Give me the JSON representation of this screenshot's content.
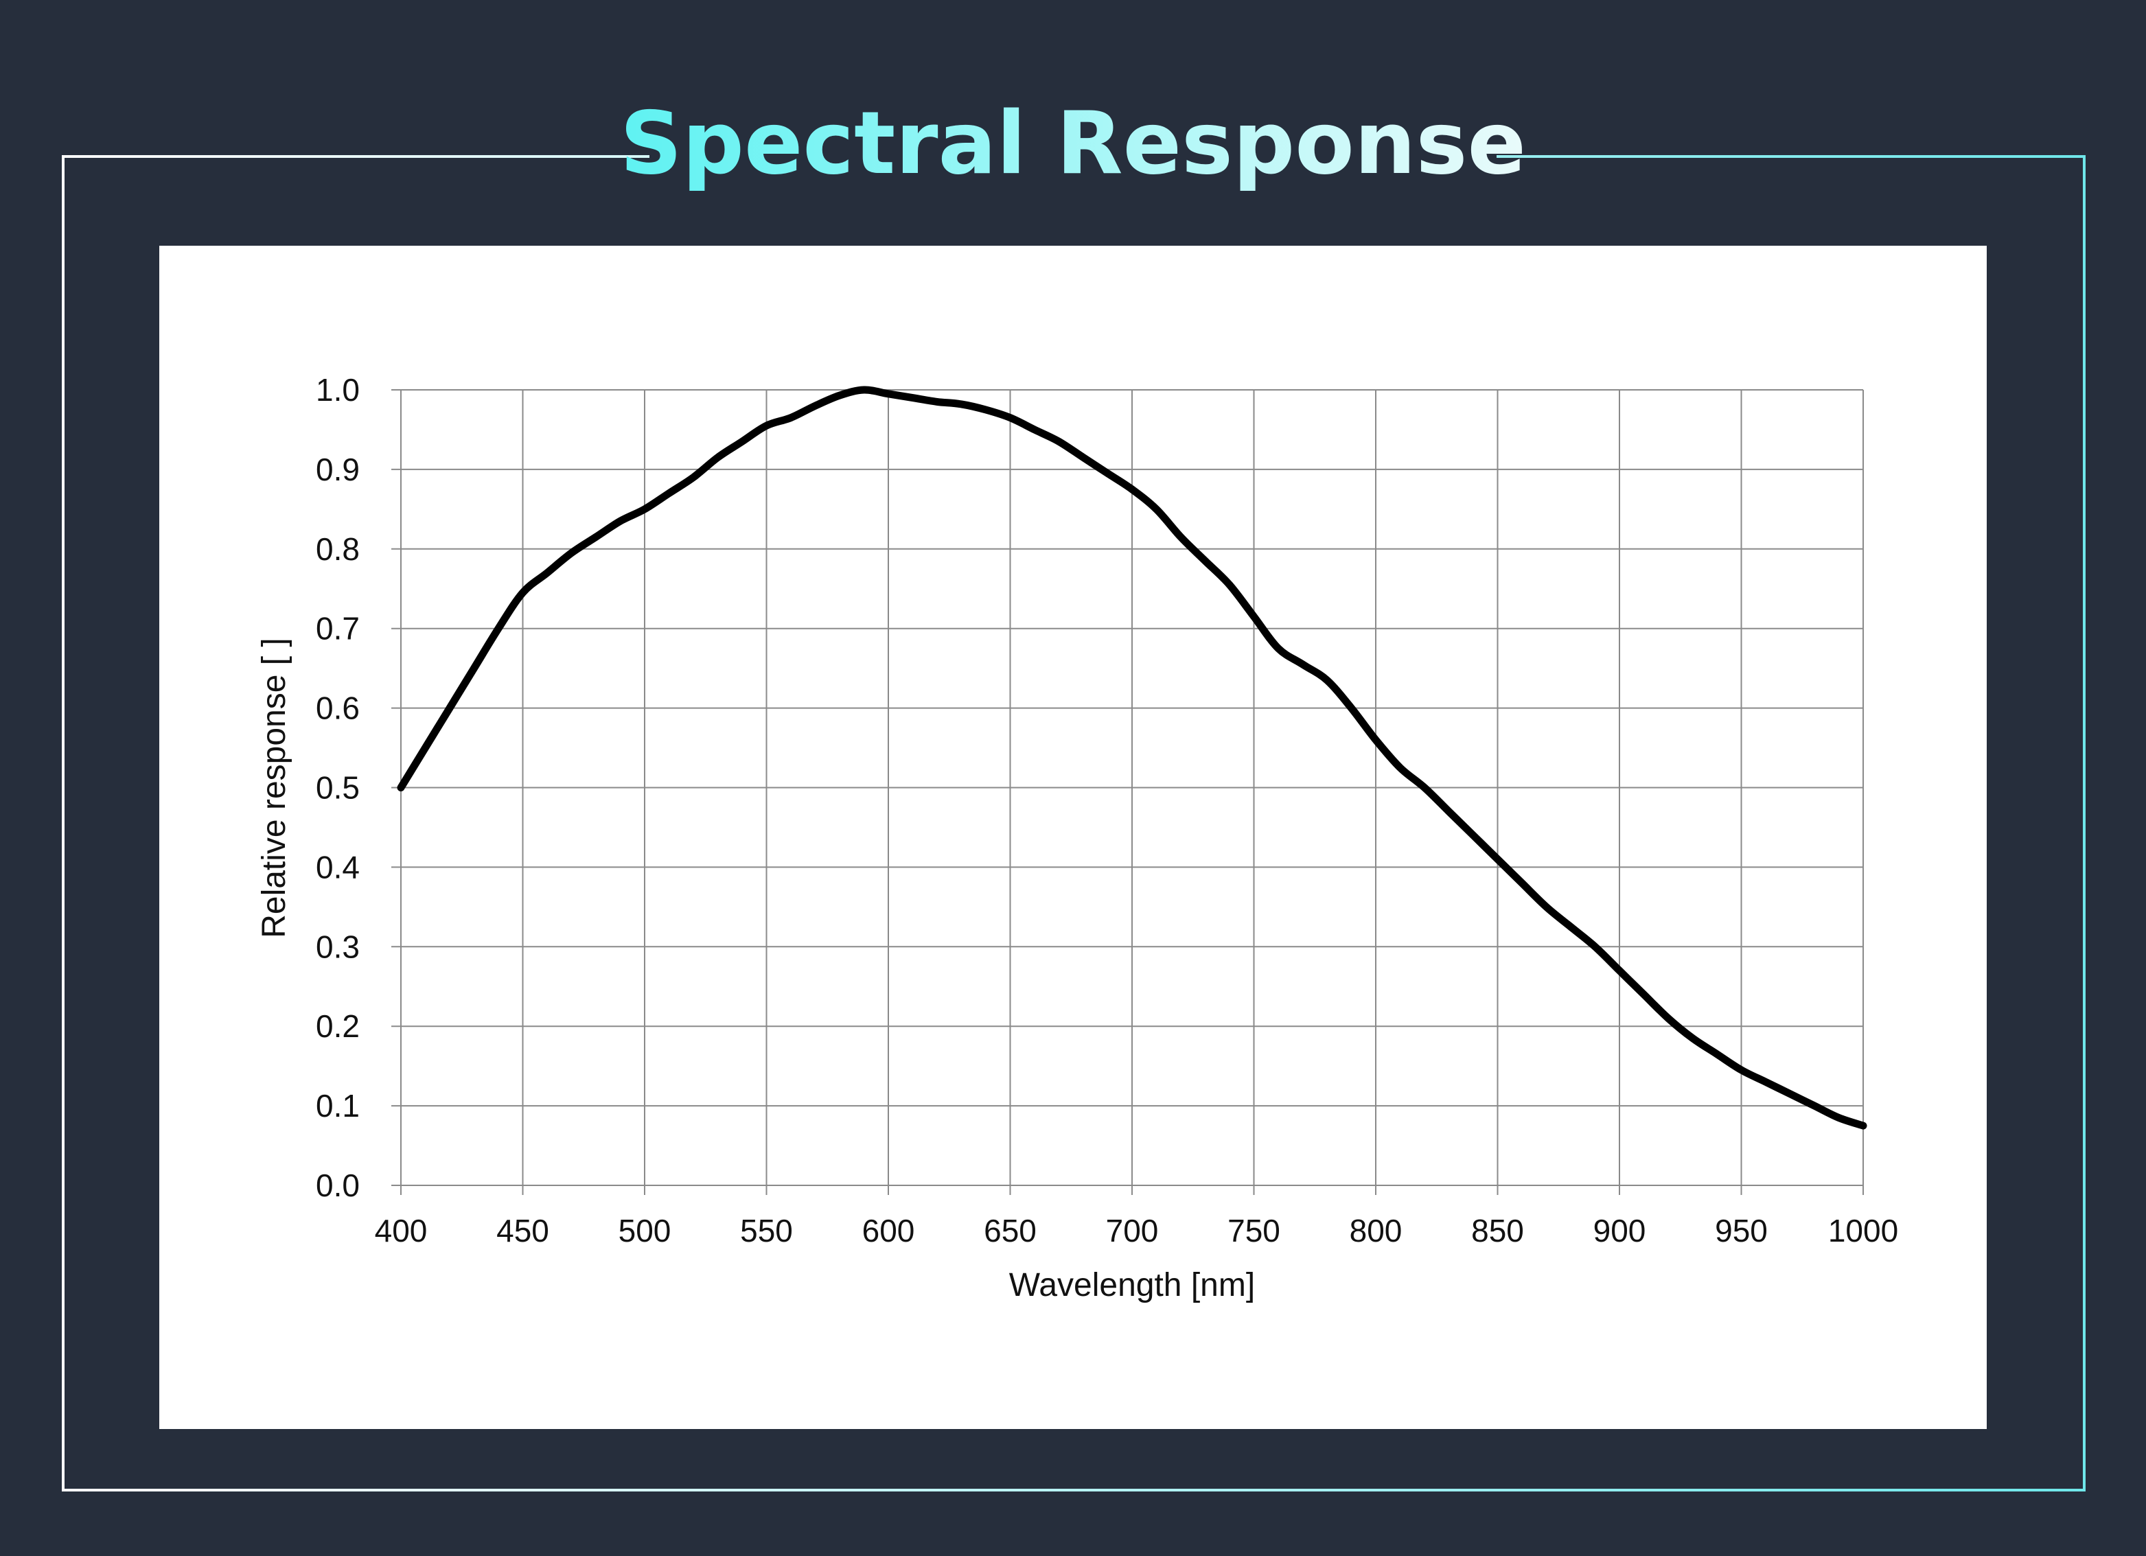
{
  "page": {
    "title": "Spectral Response"
  },
  "colors": {
    "background": "#262e3c",
    "title_start": "#5ff2f2",
    "title_end": "#e9fbfb",
    "frame_border_left": "#ffffff",
    "frame_border_right": "#6fe7ea",
    "plot_background": "#ffffff",
    "grid": "#8a8a8a",
    "curve": "#000000"
  },
  "chart_data": {
    "type": "line",
    "title": "",
    "xlabel": "Wavelength [nm]",
    "ylabel": "Relative response [ ]",
    "xlim": [
      400,
      1000
    ],
    "ylim": [
      0.0,
      1.0
    ],
    "grid": true,
    "legend": "none",
    "x_ticks": [
      "400",
      "450",
      "500",
      "550",
      "600",
      "650",
      "700",
      "750",
      "800",
      "850",
      "900",
      "950",
      "1000"
    ],
    "y_ticks": [
      "0.0",
      "0.1",
      "0.2",
      "0.3",
      "0.4",
      "0.5",
      "0.6",
      "0.7",
      "0.8",
      "0.9",
      "1.0"
    ],
    "series": [
      {
        "x": [
          400,
          410,
          420,
          430,
          440,
          450,
          460,
          470,
          480,
          490,
          500,
          510,
          520,
          530,
          540,
          550,
          560,
          570,
          580,
          590,
          600,
          610,
          620,
          630,
          640,
          650,
          660,
          670,
          680,
          690,
          700,
          710,
          720,
          730,
          740,
          750,
          760,
          770,
          780,
          790,
          800,
          810,
          820,
          830,
          840,
          850,
          860,
          870,
          880,
          890,
          900,
          910,
          920,
          930,
          940,
          950,
          960,
          970,
          980,
          990,
          1000
        ],
        "y": [
          0.5,
          0.55,
          0.6,
          0.65,
          0.7,
          0.745,
          0.77,
          0.795,
          0.815,
          0.835,
          0.85,
          0.87,
          0.89,
          0.915,
          0.935,
          0.955,
          0.965,
          0.98,
          0.993,
          1.0,
          0.995,
          0.99,
          0.985,
          0.982,
          0.975,
          0.965,
          0.95,
          0.935,
          0.915,
          0.895,
          0.875,
          0.85,
          0.815,
          0.785,
          0.755,
          0.715,
          0.675,
          0.655,
          0.635,
          0.6,
          0.56,
          0.525,
          0.5,
          0.47,
          0.44,
          0.41,
          0.38,
          0.35,
          0.325,
          0.3,
          0.27,
          0.24,
          0.21,
          0.185,
          0.165,
          0.145,
          0.13,
          0.115,
          0.1,
          0.085,
          0.075
        ]
      }
    ]
  }
}
